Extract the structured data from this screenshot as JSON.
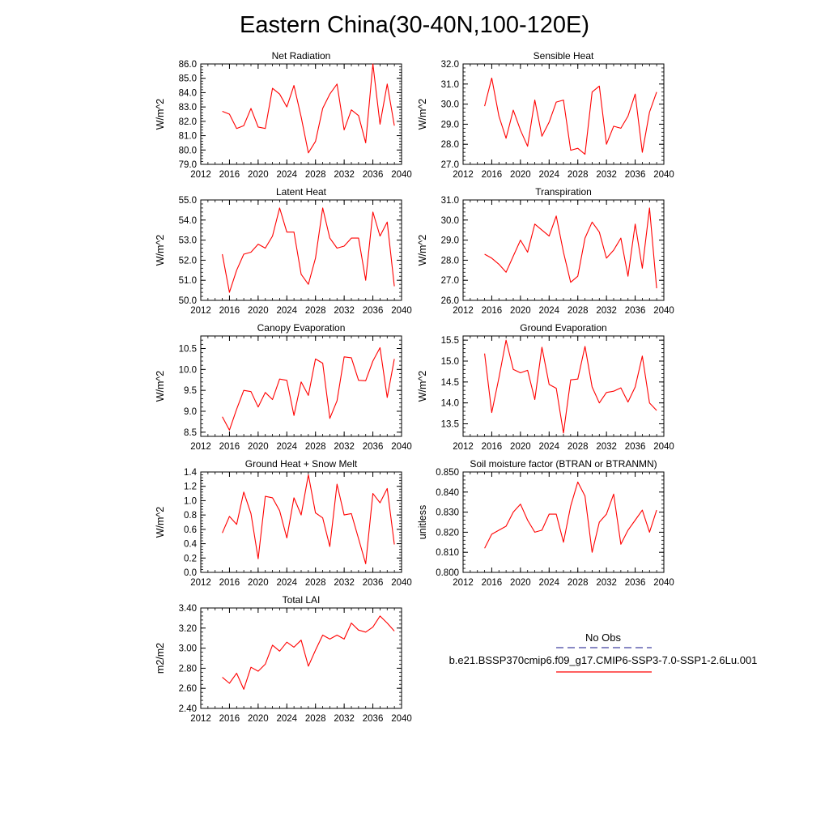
{
  "title": "Eastern China(30-40N,100-120E)",
  "years": [
    2015,
    2016,
    2017,
    2018,
    2019,
    2020,
    2021,
    2022,
    2023,
    2024,
    2025,
    2026,
    2027,
    2028,
    2029,
    2030,
    2031,
    2032,
    2033,
    2034,
    2035,
    2036,
    2037,
    2038,
    2039
  ],
  "chart_data": [
    {
      "type": "line",
      "title": "Net Radiation",
      "ylabel": "W/m^2",
      "xlim": [
        2012,
        2040
      ],
      "ylim": [
        79.0,
        86.0
      ],
      "xticks": [
        "2012",
        "2016",
        "2020",
        "2024",
        "2028",
        "2032",
        "2036",
        "2040"
      ],
      "yticks": [
        "79.0",
        "80.0",
        "81.0",
        "82.0",
        "83.0",
        "84.0",
        "85.0",
        "86.0"
      ],
      "series": [
        {
          "name": "b.e21.BSSP370cmip6.f09_g17.CMIP6-SSP3-7.0-SSP1-2.6Lu.001",
          "color": "#ff0000",
          "y": [
            82.7,
            82.5,
            81.5,
            81.7,
            82.9,
            81.6,
            81.5,
            84.3,
            83.9,
            83.0,
            84.5,
            82.3,
            79.8,
            80.6,
            82.9,
            83.9,
            84.6,
            81.4,
            82.8,
            82.4,
            80.5,
            86.0,
            81.8,
            84.6,
            81.7
          ]
        }
      ]
    },
    {
      "type": "line",
      "title": "Sensible Heat",
      "ylabel": "W/m^2",
      "xlim": [
        2012,
        2040
      ],
      "ylim": [
        27.0,
        32.0
      ],
      "xticks": [
        "2012",
        "2016",
        "2020",
        "2024",
        "2028",
        "2032",
        "2036",
        "2040"
      ],
      "yticks": [
        "27.0",
        "28.0",
        "29.0",
        "30.0",
        "31.0",
        "32.0"
      ],
      "series": [
        {
          "name": "b.e21.BSSP370cmip6.f09_g17.CMIP6-SSP3-7.0-SSP1-2.6Lu.001",
          "color": "#ff0000",
          "y": [
            29.9,
            31.3,
            29.4,
            28.3,
            29.7,
            28.7,
            27.9,
            30.2,
            28.4,
            29.1,
            30.1,
            30.2,
            27.7,
            27.8,
            27.5,
            30.6,
            30.9,
            28.0,
            28.9,
            28.8,
            29.4,
            30.5,
            27.6,
            29.6,
            30.6
          ]
        }
      ]
    },
    {
      "type": "line",
      "title": "Latent Heat",
      "ylabel": "W/m^2",
      "xlim": [
        2012,
        2040
      ],
      "ylim": [
        50.0,
        55.0
      ],
      "xticks": [
        "2012",
        "2016",
        "2020",
        "2024",
        "2028",
        "2032",
        "2036",
        "2040"
      ],
      "yticks": [
        "50.0",
        "51.0",
        "52.0",
        "53.0",
        "54.0",
        "55.0"
      ],
      "series": [
        {
          "name": "b.e21.BSSP370cmip6.f09_g17.CMIP6-SSP3-7.0-SSP1-2.6Lu.001",
          "color": "#ff0000",
          "y": [
            52.3,
            50.4,
            51.5,
            52.3,
            52.4,
            52.8,
            52.6,
            53.2,
            54.6,
            53.4,
            53.4,
            51.3,
            50.8,
            52.1,
            54.6,
            53.1,
            52.6,
            52.7,
            53.1,
            53.1,
            51.0,
            54.4,
            53.2,
            53.9,
            50.7
          ]
        }
      ]
    },
    {
      "type": "line",
      "title": "Transpiration",
      "ylabel": "W/m^2",
      "xlim": [
        2012,
        2040
      ],
      "ylim": [
        26.0,
        31.0
      ],
      "xticks": [
        "2012",
        "2016",
        "2020",
        "2024",
        "2028",
        "2032",
        "2036",
        "2040"
      ],
      "yticks": [
        "26.0",
        "27.0",
        "28.0",
        "29.0",
        "30.0",
        "31.0"
      ],
      "series": [
        {
          "name": "b.e21.BSSP370cmip6.f09_g17.CMIP6-SSP3-7.0-SSP1-2.6Lu.001",
          "color": "#ff0000",
          "y": [
            28.3,
            28.1,
            27.8,
            27.4,
            28.2,
            29.0,
            28.4,
            29.8,
            29.5,
            29.2,
            30.2,
            28.4,
            26.9,
            27.2,
            29.1,
            29.9,
            29.4,
            28.1,
            28.5,
            29.1,
            27.2,
            29.8,
            27.6,
            30.6,
            26.6
          ]
        }
      ]
    },
    {
      "type": "line",
      "title": "Canopy Evaporation",
      "ylabel": "W/m^2",
      "xlim": [
        2012,
        2040
      ],
      "ylim": [
        8.4,
        10.8
      ],
      "xticks": [
        "2012",
        "2016",
        "2020",
        "2024",
        "2028",
        "2032",
        "2036",
        "2040"
      ],
      "yticks": [
        "8.5",
        "9.0",
        "9.5",
        "10.0",
        "10.5"
      ],
      "series": [
        {
          "name": "b.e21.BSSP370cmip6.f09_g17.CMIP6-SSP3-7.0-SSP1-2.6Lu.001",
          "color": "#ff0000",
          "y": [
            8.87,
            8.55,
            9.05,
            9.5,
            9.47,
            9.1,
            9.45,
            9.28,
            9.77,
            9.74,
            8.9,
            9.7,
            9.38,
            10.25,
            10.15,
            8.83,
            9.25,
            10.3,
            10.28,
            9.74,
            9.73,
            10.2,
            10.52,
            9.33,
            10.25
          ]
        }
      ]
    },
    {
      "type": "line",
      "title": "Ground Evaporation",
      "ylabel": "W/m^2",
      "xlim": [
        2012,
        2040
      ],
      "ylim": [
        13.2,
        15.6
      ],
      "xticks": [
        "2012",
        "2016",
        "2020",
        "2024",
        "2028",
        "2032",
        "2036",
        "2040"
      ],
      "yticks": [
        "13.5",
        "14.0",
        "14.5",
        "15.0",
        "15.5"
      ],
      "series": [
        {
          "name": "b.e21.BSSP370cmip6.f09_g17.CMIP6-SSP3-7.0-SSP1-2.6Lu.001",
          "color": "#ff0000",
          "y": [
            15.18,
            13.77,
            14.6,
            15.5,
            14.8,
            14.72,
            14.78,
            14.08,
            15.33,
            14.44,
            14.35,
            13.28,
            14.55,
            14.57,
            15.35,
            14.38,
            14.0,
            14.25,
            14.28,
            14.36,
            14.02,
            14.38,
            15.12,
            14.0,
            13.82
          ]
        }
      ]
    },
    {
      "type": "line",
      "title": "Ground Heat + Snow Melt",
      "ylabel": "W/m^2",
      "xlim": [
        2012,
        2040
      ],
      "ylim": [
        0.0,
        1.4
      ],
      "xticks": [
        "2012",
        "2016",
        "2020",
        "2024",
        "2028",
        "2032",
        "2036",
        "2040"
      ],
      "yticks": [
        "0.0",
        "0.2",
        "0.4",
        "0.6",
        "0.8",
        "1.0",
        "1.2",
        "1.4"
      ],
      "series": [
        {
          "name": "b.e21.BSSP370cmip6.f09_g17.CMIP6-SSP3-7.0-SSP1-2.6Lu.001",
          "color": "#ff0000",
          "y": [
            0.55,
            0.78,
            0.67,
            1.12,
            0.82,
            0.19,
            1.06,
            1.04,
            0.86,
            0.48,
            1.04,
            0.8,
            1.36,
            0.83,
            0.76,
            0.36,
            1.23,
            0.8,
            0.82,
            0.47,
            0.12,
            1.1,
            0.97,
            1.17,
            0.39
          ]
        }
      ]
    },
    {
      "type": "line",
      "title": "Soil moisture factor (BTRAN or BTRANMN)",
      "ylabel": "unitless",
      "xlim": [
        2012,
        2040
      ],
      "ylim": [
        0.8,
        0.85
      ],
      "xticks": [
        "2012",
        "2016",
        "2020",
        "2024",
        "2028",
        "2032",
        "2036",
        "2040"
      ],
      "yticks": [
        "0.800",
        "0.810",
        "0.820",
        "0.830",
        "0.840",
        "0.850"
      ],
      "series": [
        {
          "name": "b.e21.BSSP370cmip6.f09_g17.CMIP6-SSP3-7.0-SSP1-2.6Lu.001",
          "color": "#ff0000",
          "y": [
            0.812,
            0.819,
            0.821,
            0.823,
            0.83,
            0.834,
            0.826,
            0.82,
            0.821,
            0.829,
            0.829,
            0.815,
            0.833,
            0.845,
            0.838,
            0.81,
            0.825,
            0.829,
            0.839,
            0.814,
            0.821,
            0.826,
            0.831,
            0.82,
            0.831
          ]
        }
      ]
    },
    {
      "type": "line",
      "title": "Total LAI",
      "ylabel": "m2/m2",
      "xlim": [
        2012,
        2040
      ],
      "ylim": [
        2.4,
        3.4
      ],
      "xticks": [
        "2012",
        "2016",
        "2020",
        "2024",
        "2028",
        "2032",
        "2036",
        "2040"
      ],
      "yticks": [
        "2.40",
        "2.60",
        "2.80",
        "3.00",
        "3.20",
        "3.40"
      ],
      "series": [
        {
          "name": "b.e21.BSSP370cmip6.f09_g17.CMIP6-SSP3-7.0-SSP1-2.6Lu.001",
          "color": "#ff0000",
          "y": [
            2.71,
            2.65,
            2.75,
            2.59,
            2.81,
            2.77,
            2.84,
            3.03,
            2.97,
            3.06,
            3.01,
            3.08,
            2.82,
            2.98,
            3.13,
            3.09,
            3.13,
            3.09,
            3.25,
            3.18,
            3.16,
            3.21,
            3.32,
            3.25,
            3.17
          ]
        }
      ]
    }
  ],
  "legend": {
    "entries": [
      {
        "label": "No Obs",
        "color": "#4040a0",
        "dash": true
      },
      {
        "label": "b.e21.BSSP370cmip6.f09_g17.CMIP6-SSP3-7.0-SSP1-2.6Lu.001",
        "color": "#ff0000",
        "dash": false
      }
    ]
  }
}
